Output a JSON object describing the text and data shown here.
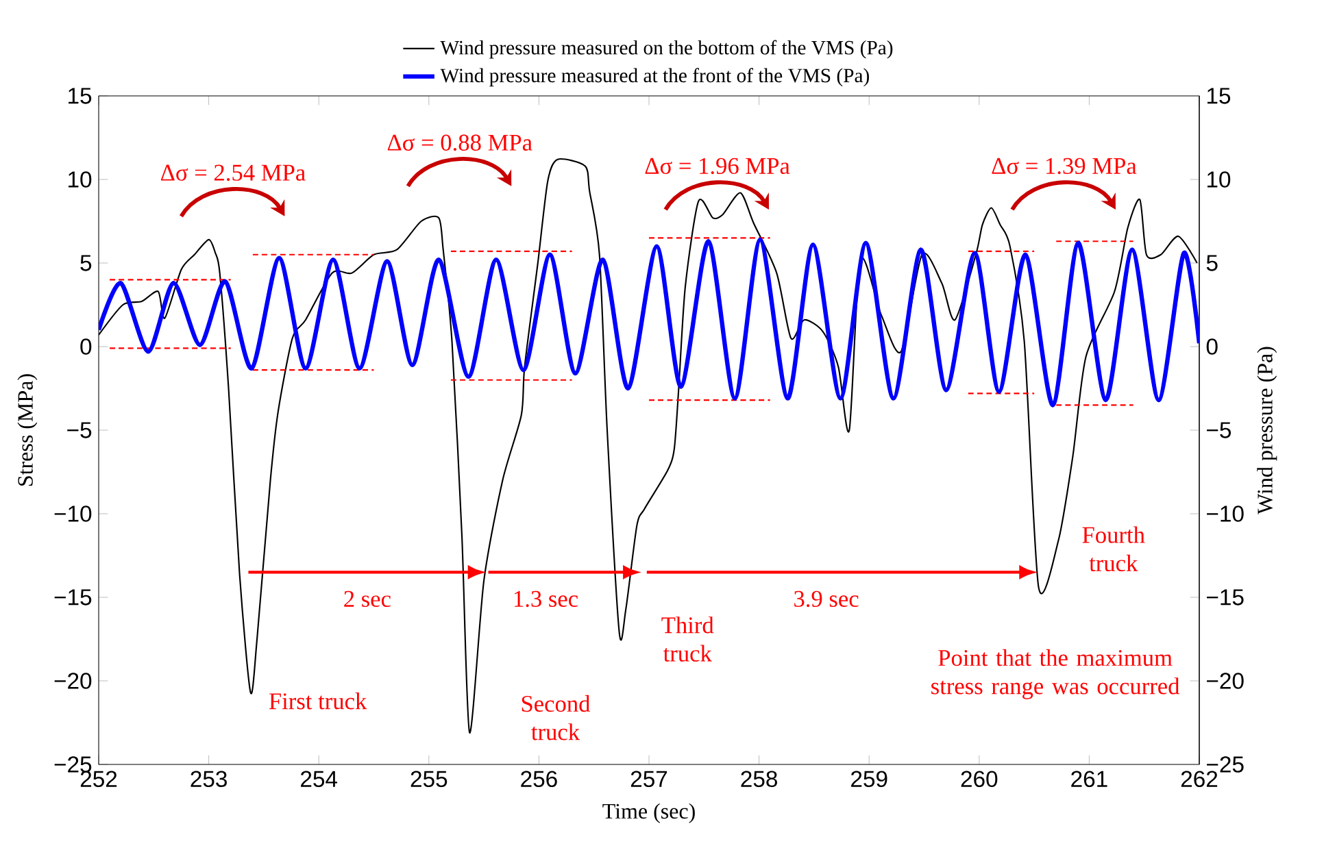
{
  "chart_data": {
    "type": "line",
    "xlabel": "Time (sec)",
    "ylabel": "Stress (MPa)",
    "y2label": "Wind pressure (Pa)",
    "xlim": [
      252,
      262
    ],
    "ylim": [
      -25,
      15
    ],
    "y2lim": [
      -25,
      15
    ],
    "xticks": [
      252,
      253,
      254,
      255,
      256,
      257,
      258,
      259,
      260,
      261,
      262
    ],
    "yticks": [
      {
        "value": -25,
        "label": "−25"
      },
      {
        "value": -20,
        "label": "−20"
      },
      {
        "value": -15,
        "label": "−15"
      },
      {
        "value": -10,
        "label": "−10"
      },
      {
        "value": -5,
        "label": "−5"
      },
      0,
      5,
      10,
      15
    ],
    "y2ticks": [
      {
        "value": -25,
        "label": "−25"
      },
      {
        "value": -20,
        "label": "−20"
      },
      {
        "value": -15,
        "label": "−15"
      },
      {
        "value": -10,
        "label": "−10"
      },
      {
        "value": -5,
        "label": "−5"
      },
      0,
      5,
      10,
      15
    ],
    "legend": "top",
    "series": [
      {
        "name": "Wind pressure measured on the bottom of the VMS  (Pa)",
        "color": "#000000",
        "x": [
          252.0,
          252.22,
          252.39,
          252.54,
          252.6,
          252.75,
          252.87,
          253.0,
          253.06,
          253.1,
          253.18,
          253.28,
          253.38,
          253.44,
          253.56,
          253.63,
          253.76,
          253.88,
          254.12,
          254.3,
          254.5,
          254.71,
          254.93,
          255.09,
          255.13,
          255.21,
          255.3,
          255.37,
          255.5,
          255.67,
          255.84,
          255.87,
          255.99,
          256.08,
          256.17,
          256.42,
          256.46,
          256.55,
          256.62,
          256.73,
          256.79,
          256.89,
          256.96,
          257.17,
          257.23,
          257.27,
          257.33,
          257.45,
          257.58,
          257.67,
          257.83,
          257.95,
          258.16,
          258.29,
          258.41,
          258.58,
          258.72,
          258.82,
          258.92,
          259.11,
          259.29,
          259.48,
          259.66,
          259.78,
          259.97,
          260.03,
          260.11,
          260.19,
          260.28,
          260.41,
          260.54,
          260.72,
          260.85,
          260.97,
          261.23,
          261.35,
          261.46,
          261.52,
          261.65,
          261.81,
          261.98
        ],
        "values": [
          0.7,
          2.5,
          2.7,
          3.3,
          1.7,
          4.6,
          5.5,
          6.4,
          5.6,
          4.4,
          -2.5,
          -13.6,
          -20.7,
          -17.4,
          -8.0,
          -3.9,
          0.5,
          1.6,
          4.4,
          4.4,
          5.5,
          5.8,
          7.5,
          7.7,
          5.8,
          0.3,
          -11.3,
          -23.1,
          -14.0,
          -8.0,
          -4.1,
          -1.2,
          5.0,
          9.9,
          11.2,
          10.8,
          9.3,
          5.5,
          -5.0,
          -17.1,
          -15.7,
          -10.7,
          -9.7,
          -7.4,
          -6.1,
          -2.5,
          3.6,
          8.7,
          7.7,
          7.9,
          9.2,
          7.4,
          4.4,
          0.5,
          1.6,
          0.9,
          -1.2,
          -5.0,
          5.2,
          1.9,
          -0.3,
          5.5,
          3.8,
          1.6,
          5.5,
          7.3,
          8.3,
          7.3,
          6.0,
          0.3,
          -14.4,
          -11.6,
          -6.6,
          -0.6,
          3.3,
          7.1,
          8.8,
          5.5,
          5.5,
          6.6,
          5.0
        ]
      },
      {
        "name": "Wind pressure measured at the front of the VMS  (Pa)",
        "color": "#0000ff",
        "axis": "y2",
        "x": [
          252.0,
          252.2,
          252.45,
          252.68,
          252.92,
          253.15,
          253.39,
          253.64,
          253.88,
          254.13,
          254.37,
          254.62,
          254.85,
          255.09,
          255.36,
          255.61,
          255.86,
          256.1,
          256.33,
          256.58,
          256.81,
          257.07,
          257.29,
          257.54,
          257.78,
          258.01,
          258.26,
          258.49,
          258.74,
          258.97,
          259.22,
          259.47,
          259.7,
          259.96,
          260.18,
          260.42,
          260.67,
          260.9,
          261.15,
          261.39,
          261.63,
          261.86,
          262.0
        ],
        "values": [
          1.0,
          3.8,
          -0.3,
          3.8,
          0.1,
          3.9,
          -1.3,
          5.3,
          -1.3,
          5.2,
          -1.3,
          5.1,
          -1.1,
          5.2,
          -1.8,
          5.2,
          -1.4,
          5.5,
          -1.6,
          5.2,
          -2.5,
          6.0,
          -2.4,
          6.3,
          -3.1,
          6.4,
          -3.1,
          6.1,
          -3.1,
          6.2,
          -3.1,
          5.8,
          -2.6,
          5.6,
          -2.7,
          5.5,
          -3.5,
          6.2,
          -3.2,
          5.8,
          -3.2,
          5.6,
          0.2
        ]
      },
      {
        "color": "#ff0000",
        "line_style": "dashed",
        "x": [
          252.1,
          253.2
        ],
        "values": [
          4.0,
          4.0
        ]
      },
      {
        "color": "#ff0000",
        "line_style": "dashed",
        "x": [
          252.1,
          253.2
        ],
        "values": [
          -0.1,
          -0.1
        ]
      },
      {
        "color": "#ff0000",
        "line_style": "dashed",
        "x": [
          253.4,
          254.5
        ],
        "values": [
          5.5,
          5.5
        ]
      },
      {
        "color": "#ff0000",
        "line_style": "dashed",
        "x": [
          253.4,
          254.5
        ],
        "values": [
          -1.4,
          -1.4
        ]
      },
      {
        "color": "#ff0000",
        "line_style": "dashed",
        "x": [
          255.2,
          256.3
        ],
        "values": [
          5.7,
          5.7
        ]
      },
      {
        "color": "#ff0000",
        "line_style": "dashed",
        "x": [
          255.2,
          256.3
        ],
        "values": [
          -2.0,
          -2.0
        ]
      },
      {
        "color": "#ff0000",
        "line_style": "dashed",
        "x": [
          257.0,
          258.1
        ],
        "values": [
          6.5,
          6.5
        ]
      },
      {
        "color": "#ff0000",
        "line_style": "dashed",
        "x": [
          257.0,
          258.1
        ],
        "values": [
          -3.2,
          -3.2
        ]
      },
      {
        "color": "#ff0000",
        "line_style": "dashed",
        "x": [
          259.9,
          260.5
        ],
        "values": [
          5.7,
          5.7
        ]
      },
      {
        "color": "#ff0000",
        "line_style": "dashed",
        "x": [
          259.9,
          260.5
        ],
        "values": [
          -2.8,
          -2.8
        ]
      },
      {
        "color": "#ff0000",
        "line_style": "dashed",
        "x": [
          260.7,
          261.4
        ],
        "values": [
          6.3,
          6.3
        ]
      },
      {
        "color": "#ff0000",
        "line_style": "dashed",
        "x": [
          260.7,
          261.4
        ],
        "values": [
          -3.5,
          -3.5
        ]
      }
    ],
    "annotations": [
      "Δσ = 2.54 MPa",
      "Δσ = 0.88 MPa",
      "Δσ = 1.96 MPa",
      "Δσ = 1.39 MPa",
      "2 sec",
      "1.3 sec",
      "3.9 sec",
      "First truck",
      "Second truck",
      "Third truck",
      "Fourth truck",
      "Point that the maximum stress range was occurred"
    ]
  }
}
